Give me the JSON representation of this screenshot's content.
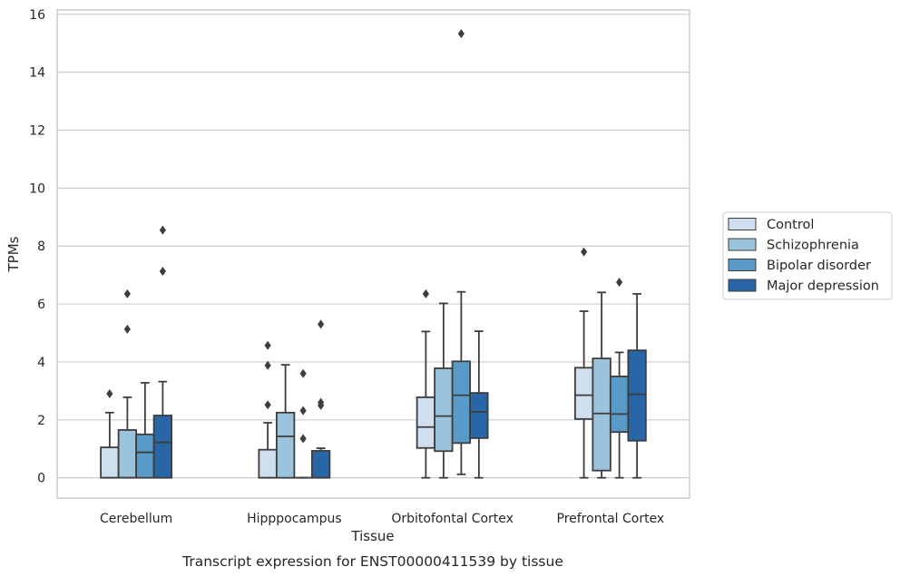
{
  "chart_data": {
    "type": "box",
    "title": "",
    "caption": "Transcript expression for ENST00000411539 by tissue",
    "xlabel": "Tissue",
    "ylabel": "TPMs",
    "ylim": [
      -0.7,
      16.15
    ],
    "yticks": [
      0,
      2,
      4,
      6,
      8,
      10,
      12,
      14,
      16
    ],
    "grid": "horizontal",
    "legend_placement": "outside-right",
    "categories": [
      "Cerebellum",
      "Hipppocampus",
      "Orbitofontal Cortex",
      "Prefrontal Cortex"
    ],
    "series": [
      {
        "name": "Control",
        "color": "#d0dff0",
        "boxes": [
          {
            "whislo": 0,
            "q1": 0,
            "med": 0,
            "q3": 1.05,
            "whishi": 2.25,
            "fliers": [
              2.9
            ]
          },
          {
            "whislo": 0,
            "q1": 0,
            "med": 0,
            "q3": 0.97,
            "whishi": 1.9,
            "fliers": [
              2.52,
              3.88,
              4.57
            ]
          },
          {
            "whislo": 0,
            "q1": 1.03,
            "med": 1.75,
            "q3": 2.78,
            "whishi": 5.05,
            "fliers": [
              6.35
            ]
          },
          {
            "whislo": 0,
            "q1": 2.03,
            "med": 2.85,
            "q3": 3.8,
            "whishi": 5.75,
            "fliers": [
              7.8
            ]
          }
        ]
      },
      {
        "name": "Schizophrenia",
        "color": "#9cc3dc",
        "boxes": [
          {
            "whislo": 0,
            "q1": 0,
            "med": 0,
            "q3": 1.65,
            "whishi": 2.78,
            "fliers": [
              5.13,
              6.35
            ]
          },
          {
            "whislo": 0,
            "q1": 0,
            "med": 1.43,
            "q3": 2.25,
            "whishi": 3.9,
            "fliers": []
          },
          {
            "whislo": 0,
            "q1": 0.92,
            "med": 2.13,
            "q3": 3.78,
            "whishi": 6.02,
            "fliers": []
          },
          {
            "whislo": 0,
            "q1": 0.25,
            "med": 2.22,
            "q3": 4.12,
            "whishi": 6.4,
            "fliers": []
          }
        ]
      },
      {
        "name": "Bipolar disorder",
        "color": "#5a9ac8",
        "boxes": [
          {
            "whislo": 0,
            "q1": 0,
            "med": 0.88,
            "q3": 1.5,
            "whishi": 3.28,
            "fliers": []
          },
          {
            "whislo": 0,
            "q1": 0,
            "med": 0,
            "q3": 0,
            "whishi": 0,
            "fliers": [
              1.35,
              2.32,
              3.6
            ]
          },
          {
            "whislo": 0.12,
            "q1": 1.2,
            "med": 2.85,
            "q3": 4.02,
            "whishi": 6.42,
            "fliers": [
              15.33
            ]
          },
          {
            "whislo": 0,
            "q1": 1.58,
            "med": 2.2,
            "q3": 3.5,
            "whishi": 4.33,
            "fliers": [
              6.75
            ]
          }
        ]
      },
      {
        "name": "Major depression",
        "color": "#2966a8",
        "boxes": [
          {
            "whislo": 0,
            "q1": 0,
            "med": 1.22,
            "q3": 2.15,
            "whishi": 3.32,
            "fliers": [
              7.13,
              8.55
            ]
          },
          {
            "whislo": 0,
            "q1": 0,
            "med": 0,
            "q3": 0.93,
            "whishi": 1.02,
            "fliers": [
              2.5,
              2.6,
              5.3
            ]
          },
          {
            "whislo": 0,
            "q1": 1.37,
            "med": 2.28,
            "q3": 2.93,
            "whishi": 5.06,
            "fliers": []
          },
          {
            "whislo": 0,
            "q1": 1.28,
            "med": 2.88,
            "q3": 4.4,
            "whishi": 6.35,
            "fliers": []
          }
        ]
      }
    ]
  }
}
